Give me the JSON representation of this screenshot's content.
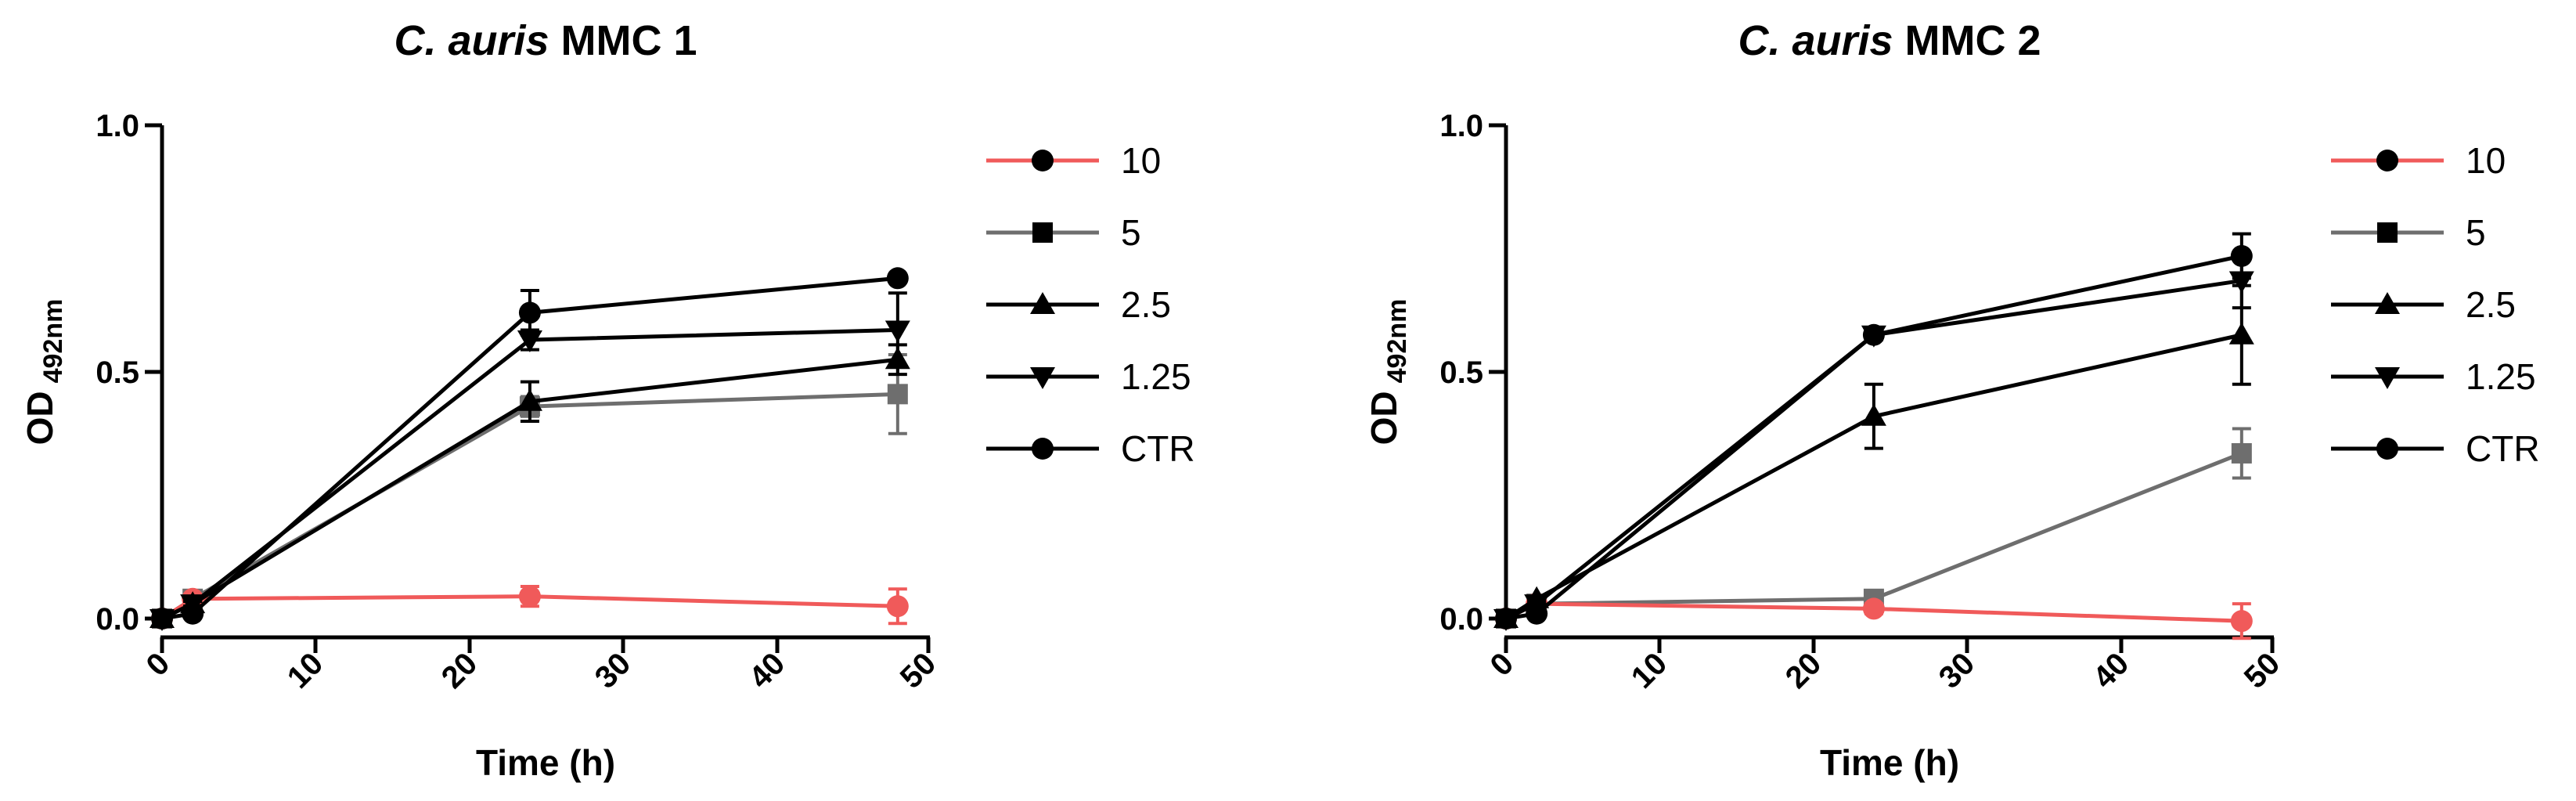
{
  "colors": {
    "red": "#f05a5a",
    "gray": "#6e6e6e",
    "black": "#000000"
  },
  "chart_data": [
    {
      "type": "line",
      "title": {
        "italic": "C. auris",
        "rest": " MMC 1"
      },
      "xlabel": "Time (h)",
      "ylabel": {
        "main": "OD",
        "sub": "492nm"
      },
      "xlim": [
        0,
        50
      ],
      "ylim": [
        0,
        1.0
      ],
      "xticks": [
        "0",
        "10",
        "20",
        "30",
        "40",
        "50"
      ],
      "yticks": [
        "0.0",
        "0.5",
        "1.0"
      ],
      "x": [
        0,
        2,
        24,
        48
      ],
      "series": [
        {
          "name": "10",
          "color": "red",
          "marker": "circle",
          "values": [
            0.0,
            0.04,
            0.045,
            0.025
          ],
          "errors": [
            0,
            0.005,
            0.02,
            0.035
          ]
        },
        {
          "name": "5",
          "color": "gray",
          "marker": "square",
          "values": [
            0.0,
            0.04,
            0.43,
            0.455
          ],
          "errors": [
            0,
            0.005,
            0.02,
            0.08
          ]
        },
        {
          "name": "2.5",
          "color": "black",
          "marker": "triangle",
          "values": [
            0.0,
            0.03,
            0.44,
            0.525
          ],
          "errors": [
            0,
            0.005,
            0.04,
            0.03
          ]
        },
        {
          "name": "1.25",
          "color": "black",
          "marker": "tri-down",
          "values": [
            0.0,
            0.03,
            0.565,
            0.585
          ],
          "errors": [
            0,
            0.005,
            0.02,
            0.075
          ]
        },
        {
          "name": "CTR",
          "color": "black",
          "marker": "circle",
          "values": [
            0.0,
            0.01,
            0.62,
            0.69
          ],
          "errors": [
            0,
            0.005,
            0.045,
            0.005
          ]
        }
      ],
      "legend": "right"
    },
    {
      "type": "line",
      "title": {
        "italic": "C. auris",
        "rest": " MMC 2"
      },
      "xlabel": "Time (h)",
      "ylabel": {
        "main": "OD",
        "sub": "492nm"
      },
      "xlim": [
        0,
        50
      ],
      "ylim": [
        0,
        1.0
      ],
      "xticks": [
        "0",
        "10",
        "20",
        "30",
        "40",
        "50"
      ],
      "yticks": [
        "0.0",
        "0.5",
        "1.0"
      ],
      "x": [
        0,
        2,
        24,
        48
      ],
      "series": [
        {
          "name": "10",
          "color": "red",
          "marker": "circle",
          "values": [
            0.0,
            0.03,
            0.02,
            -0.005
          ],
          "errors": [
            0,
            0.005,
            0.01,
            0.035
          ]
        },
        {
          "name": "5",
          "color": "gray",
          "marker": "square",
          "values": [
            0.0,
            0.03,
            0.04,
            0.335
          ],
          "errors": [
            0,
            0.005,
            0.01,
            0.05
          ]
        },
        {
          "name": "2.5",
          "color": "black",
          "marker": "triangle",
          "values": [
            0.0,
            0.04,
            0.41,
            0.575
          ],
          "errors": [
            0,
            0.005,
            0.065,
            0.1
          ]
        },
        {
          "name": "1.25",
          "color": "black",
          "marker": "tri-down",
          "values": [
            0.0,
            0.03,
            0.575,
            0.685
          ],
          "errors": [
            0,
            0.005,
            0.01,
            0.055
          ]
        },
        {
          "name": "CTR",
          "color": "black",
          "marker": "circle",
          "values": [
            0.0,
            0.01,
            0.575,
            0.735
          ],
          "errors": [
            0,
            0.005,
            0.005,
            0.045
          ]
        }
      ],
      "legend": "right"
    }
  ]
}
